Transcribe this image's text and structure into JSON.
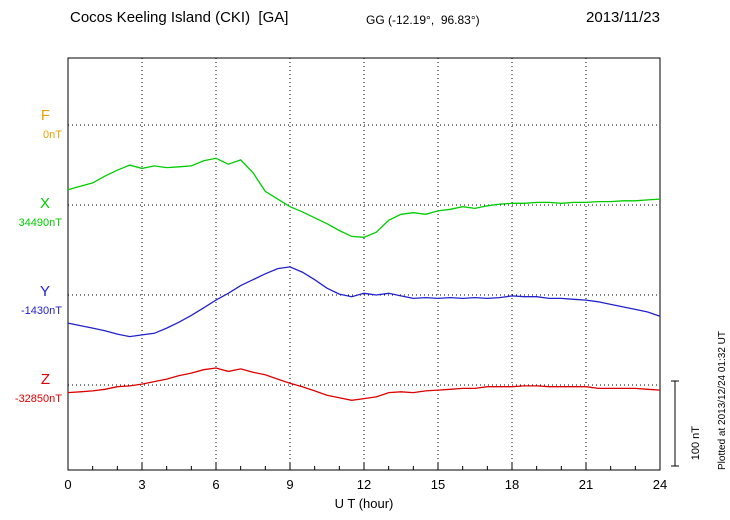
{
  "header": {
    "station_title": "Cocos Keeling Island (CKI)  [GA]",
    "gg_coords": "GG (-12.19°,  96.83°)",
    "date": "2013/11/23"
  },
  "components": [
    {
      "id": "F",
      "label": "F",
      "baseline_label": "0nT",
      "color": "#f0a000"
    },
    {
      "id": "X",
      "label": "X",
      "baseline_label": "34490nT",
      "color": "#00cc00"
    },
    {
      "id": "Y",
      "label": "Y",
      "baseline_label": "-1430nT",
      "color": "#2222cc"
    },
    {
      "id": "Z",
      "label": "Z",
      "baseline_label": "-32850nT",
      "color": "#dd0000"
    }
  ],
  "axis": {
    "x_label": "U T (hour)",
    "x_ticks": [
      "0",
      "3",
      "6",
      "9",
      "12",
      "15",
      "18",
      "21",
      "24"
    ]
  },
  "scale_bar": {
    "label": "100 nT",
    "nT": 100
  },
  "footer_note": "Plotted at 2013/12/24 01:32 UT",
  "chart_data": {
    "type": "line",
    "title": "Cocos Keeling Island (CKI) [GA] magnetogram 2013/11/23",
    "xlabel": "U T (hour)",
    "x_range_hours": [
      0,
      24
    ],
    "x_step_hours": 0.5,
    "x_tick_interval_hours": 3,
    "grid": "dotted vertical lines every 3 hours; dotted horizontal baseline per component",
    "legend_position": "left margin (component letters with baseline values)",
    "scale_bar_nT": 100,
    "series": [
      {
        "name": "F",
        "color": "#f0a000",
        "baseline_nT": 0,
        "values": []
      },
      {
        "name": "X",
        "color": "#00cc00",
        "baseline_nT": 34490,
        "values": [
          34508,
          34512,
          34516,
          34524,
          34531,
          34537,
          34533,
          34536,
          34534,
          34535,
          34536,
          34542,
          34545,
          34538,
          34543,
          34528,
          34506,
          34497,
          34488,
          34482,
          34475,
          34468,
          34460,
          34453,
          34452,
          34458,
          34472,
          34479,
          34481,
          34479,
          34483,
          34485,
          34488,
          34486,
          34489,
          34491,
          34492,
          34492,
          34493,
          34493,
          34492,
          34493,
          34493,
          34494,
          34494,
          34495,
          34495,
          34496,
          34497
        ]
      },
      {
        "name": "Y",
        "color": "#2222cc",
        "baseline_nT": -1430,
        "values": [
          -1463,
          -1466,
          -1469,
          -1472,
          -1476,
          -1479,
          -1477,
          -1475,
          -1469,
          -1462,
          -1454,
          -1445,
          -1436,
          -1428,
          -1419,
          -1412,
          -1405,
          -1399,
          -1397,
          -1403,
          -1412,
          -1422,
          -1429,
          -1432,
          -1428,
          -1430,
          -1428,
          -1431,
          -1434,
          -1433,
          -1434,
          -1433,
          -1434,
          -1433,
          -1434,
          -1433,
          -1431,
          -1432,
          -1432,
          -1434,
          -1434,
          -1435,
          -1436,
          -1438,
          -1441,
          -1444,
          -1447,
          -1450,
          -1455
        ]
      },
      {
        "name": "Z",
        "color": "#dd0000",
        "baseline_nT": -32850,
        "values": [
          -32859,
          -32858,
          -32857,
          -32855,
          -32852,
          -32851,
          -32849,
          -32846,
          -32843,
          -32839,
          -32836,
          -32832,
          -32830,
          -32834,
          -32831,
          -32835,
          -32838,
          -32843,
          -32848,
          -32852,
          -32857,
          -32862,
          -32865,
          -32868,
          -32866,
          -32864,
          -32859,
          -32858,
          -32859,
          -32857,
          -32856,
          -32855,
          -32854,
          -32854,
          -32852,
          -32852,
          -32852,
          -32851,
          -32851,
          -32852,
          -32852,
          -32852,
          -32852,
          -32854,
          -32854,
          -32854,
          -32854,
          -32855,
          -32856
        ]
      }
    ]
  }
}
